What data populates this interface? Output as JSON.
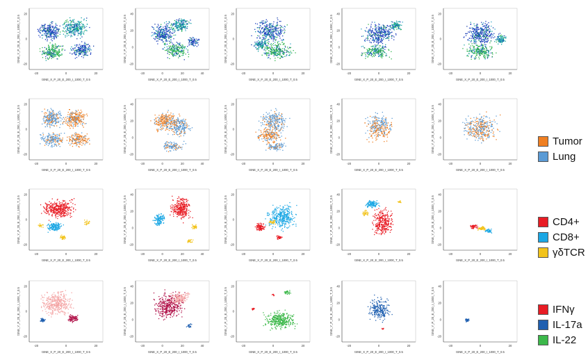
{
  "figure": {
    "rows": [
      {
        "name": "row-all",
        "panels": [
          {
            "xlabel": "tSNE_X_P_20_E_200_I_1000_T_0.5",
            "ylabel": "tSNE_Y_P_20_E_200_I_1000_T_0.5",
            "xticks": [
              "-20",
              "0",
              "20"
            ],
            "yticks": [
              "20",
              "0",
              "-20"
            ],
            "scheme": "density"
          },
          {
            "xlabel": "tSNE_X_P_20_E_200_I_1000_T_0.5",
            "ylabel": "tSNE_Y_P_20_E_200_I_1000_T_0.5",
            "xticks": [
              "-20",
              "0",
              "20",
              "40"
            ],
            "yticks": [
              "40",
              "20",
              "0",
              "-20"
            ],
            "scheme": "density"
          },
          {
            "xlabel": "tSNE_X_P_20_E_200_I_1000_T_0.5",
            "ylabel": "tSNE_Y_P_20_E_200_I_1000_T_0.5",
            "xticks": [
              "-20",
              "0",
              "20"
            ],
            "yticks": [
              "20",
              "0",
              "-20"
            ],
            "scheme": "density"
          },
          {
            "xlabel": "tSNE_X_P_20_E_200_I_1000_T_0.5",
            "ylabel": "tSNE_Y_P_20_E_200_I_1000_T_0.5",
            "xticks": [
              "-20",
              "0",
              "20"
            ],
            "yticks": [
              "40",
              "20",
              "0",
              "-20"
            ],
            "scheme": "density"
          },
          {
            "xlabel": "tSNE_X_P_20_E_200_I_1000_T_0.5",
            "ylabel": "tSNE_Y_P_20_E_200_I_1000_T_0.5",
            "xticks": [
              "-20",
              "0",
              "20"
            ],
            "yticks": [
              "20",
              "0",
              "-20"
            ],
            "scheme": "density"
          }
        ]
      },
      {
        "name": "row-tissue",
        "panels": [
          {
            "xlabel": "tSNE_X_P_20_E_200_I_1000_T_0.5",
            "ylabel": "tSNE_Y_P_20_E_200_I_1000_T_0.5",
            "xticks": [
              "-20",
              "0",
              "20"
            ],
            "yticks": [
              "20",
              "0",
              "-20"
            ],
            "scheme": "tissue"
          },
          {
            "xlabel": "tSNE_X_P_20_E_200_I_1000_T_0.5",
            "ylabel": "tSNE_Y_P_20_E_200_I_1000_T_0.5",
            "xticks": [
              "-20",
              "0",
              "20",
              "40"
            ],
            "yticks": [
              "40",
              "20",
              "0",
              "-20"
            ],
            "scheme": "tissue"
          },
          {
            "xlabel": "tSNE_X_P_20_E_200_I_1000_T_0.5",
            "ylabel": "tSNE_Y_P_20_E_200_I_1000_T_0.5",
            "xticks": [
              "-20",
              "0",
              "20"
            ],
            "yticks": [
              "20",
              "0",
              "-20"
            ],
            "scheme": "tissue"
          },
          {
            "xlabel": "tSNE_X_P_20_E_200_I_1000_T_0.5",
            "ylabel": "tSNE_Y_P_20_E_200_I_1000_T_0.5",
            "xticks": [
              "-20",
              "0",
              "20"
            ],
            "yticks": [
              "40",
              "20",
              "0",
              "-20"
            ],
            "scheme": "tissue"
          },
          {
            "xlabel": "tSNE_X_P_20_E_200_I_1000_T_0.5",
            "ylabel": "tSNE_Y_P_20_E_200_I_1000_T_0.5",
            "xticks": [
              "-20",
              "0",
              "20"
            ],
            "yticks": [
              "40",
              "20",
              "0",
              "-20"
            ],
            "scheme": "tissue"
          }
        ]
      },
      {
        "name": "row-lineage",
        "panels": [
          {
            "xlabel": "tSNE_X_P_20_E_200_I_1000_T_0.5",
            "ylabel": "tSNE_Y_P_20_E_200_I_1000_T_0.5",
            "xticks": [
              "-20",
              "0",
              "20"
            ],
            "yticks": [
              "20",
              "0",
              "-20"
            ],
            "scheme": "lineage"
          },
          {
            "xlabel": "tSNE_X_P_20_E_200_I_1000_T_0.5",
            "ylabel": "tSNE_Y_P_20_E_200_I_1000_T_0.5",
            "xticks": [
              "-20",
              "0",
              "20",
              "40"
            ],
            "yticks": [
              "40",
              "20",
              "0",
              "-20"
            ],
            "scheme": "lineage"
          },
          {
            "xlabel": "tSNE_X_P_20_E_200_I_1000_T_0.5",
            "ylabel": "tSNE_Y_P_20_E_200_I_1000_T_0.5",
            "xticks": [
              "-20",
              "0",
              "20"
            ],
            "yticks": [
              "20",
              "0",
              "-20"
            ],
            "scheme": "lineage"
          },
          {
            "xlabel": "tSNE_X_P_20_E_200_I_1000_T_0.5",
            "ylabel": "tSNE_Y_P_20_E_200_I_1000_T_0.5",
            "xticks": [
              "-20",
              "0",
              "20"
            ],
            "yticks": [
              "40",
              "20",
              "0",
              "-20"
            ],
            "scheme": "lineage"
          },
          {
            "xlabel": "tSNE_X_P_20_E_200_I_1000_T_0.5",
            "ylabel": "tSNE_Y_P_20_E_200_I_1000_T_0.5",
            "xticks": [
              "-20",
              "0",
              "20"
            ],
            "yticks": [
              "40",
              "20",
              "0",
              "-20"
            ],
            "scheme": "lineage"
          }
        ]
      },
      {
        "name": "row-cytokine",
        "panels": [
          {
            "xlabel": "tSNE_X_P_20_E_200_I_1000_T_0.5",
            "ylabel": "tSNE_Y_P_20_E_200_I_1000_T_0.5",
            "xticks": [
              "-20",
              "0",
              "20"
            ],
            "yticks": [
              "20",
              "0",
              "-20"
            ],
            "scheme": "cytokine"
          },
          {
            "xlabel": "tSNE_X_P_20_E_200_I_1000_T_0.5",
            "ylabel": "tSNE_Y_P_20_E_200_I_1000_T_0.5",
            "xticks": [
              "-20",
              "0",
              "20",
              "40"
            ],
            "yticks": [
              "40",
              "20",
              "0",
              "-20"
            ],
            "scheme": "cytokine"
          },
          {
            "xlabel": "tSNE_X_P_20_E_200_I_1000_T_0.5",
            "ylabel": "tSNE_Y_P_20_E_200_I_1000_T_0.5",
            "xticks": [
              "-20",
              "0",
              "20"
            ],
            "yticks": [
              "20",
              "0",
              "-20"
            ],
            "scheme": "cytokine"
          },
          {
            "xlabel": "tSNE_X_P_20_E_200_I_1000_T_0.5",
            "ylabel": "tSNE_Y_P_20_E_200_I_1000_T_0.5",
            "xticks": [
              "-20",
              "0",
              "20"
            ],
            "yticks": [
              "40",
              "20",
              "0",
              "-20"
            ],
            "scheme": "cytokine"
          },
          {
            "xlabel": "tSNE_X_P_20_E_200_I_1000_T_0.5",
            "ylabel": "tSNE_Y_P_20_E_200_I_1000_T_0.5",
            "xticks": [
              "-20",
              "0",
              "20"
            ],
            "yticks": [
              "40",
              "20",
              "0",
              "-20"
            ],
            "scheme": "cytokine"
          }
        ]
      }
    ]
  },
  "legends": [
    {
      "name": "tissue-legend",
      "items": [
        {
          "label": "Tumor",
          "color": "#ef7f22"
        },
        {
          "label": "Lung",
          "color": "#5b9bd5"
        }
      ]
    },
    {
      "name": "lineage-legend",
      "items": [
        {
          "label": "CD4+",
          "color": "#e81c24"
        },
        {
          "label": "CD8+",
          "color": "#1ba7e4"
        },
        {
          "label": "γδTCR",
          "color": "#f2c31b"
        }
      ]
    },
    {
      "name": "cytokine-legend",
      "items": [
        {
          "label": "IFNγ",
          "color": "#e81c24"
        },
        {
          "label": "IL-17a",
          "color": "#1f5fb0"
        },
        {
          "label": "IL-22",
          "color": "#3cb84a"
        }
      ]
    }
  ],
  "chart_data": [
    {
      "type": "scatter",
      "panel": "row 1 (all events)",
      "xlabel": "tSNE_X_P_20_E_200_I_1000_T_0.5",
      "ylabel": "tSNE_Y_P_20_E_200_I_1000_T_0.5",
      "grid": false,
      "colors": [
        "#1f3fbf",
        "#17a2a2",
        "#2db34a"
      ]
    },
    {
      "type": "scatter",
      "panel": "row 2 (tissue)",
      "series": [
        {
          "name": "Tumor"
        },
        {
          "name": "Lung"
        }
      ],
      "grid": false
    },
    {
      "type": "scatter",
      "panel": "row 3 (lineage)",
      "series": [
        {
          "name": "CD4+"
        },
        {
          "name": "CD8+"
        },
        {
          "name": "γδTCR"
        }
      ],
      "grid": false
    },
    {
      "type": "scatter",
      "panel": "row 4 (cytokine)",
      "series": [
        {
          "name": "IFNγ"
        },
        {
          "name": "IL-17a"
        },
        {
          "name": "IL-22"
        }
      ],
      "grid": false
    }
  ]
}
